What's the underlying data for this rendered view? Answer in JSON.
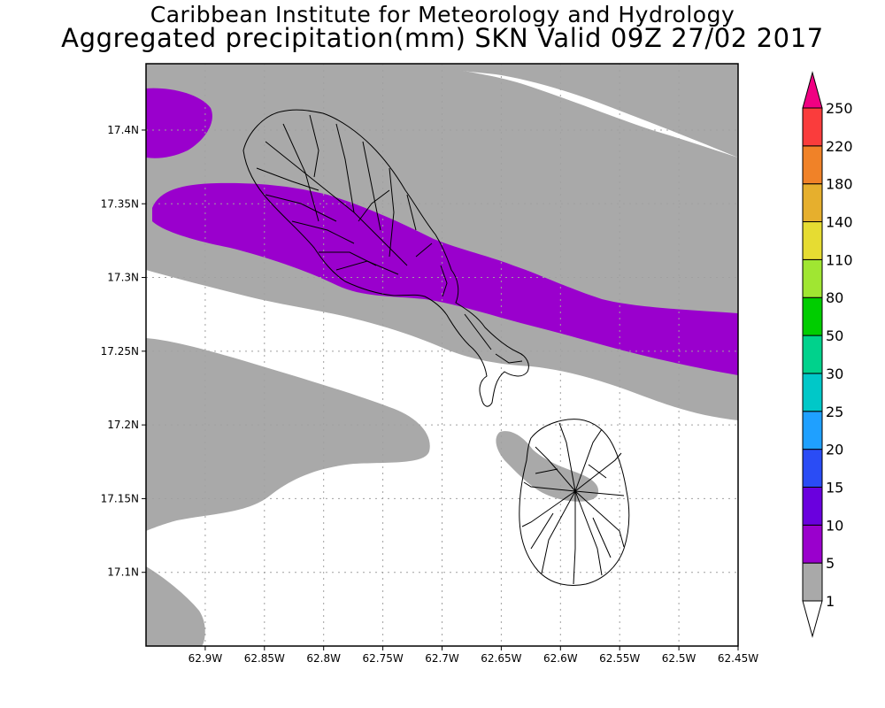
{
  "title_line1": "Caribbean Institute for Meteorology and Hydrology",
  "title_line2": "Aggregated precipitation(mm) SKN Valid 09Z 27/02 2017",
  "map": {
    "lon_range": [
      -62.95,
      -62.45
    ],
    "lat_range": [
      17.05,
      17.445
    ],
    "lon_ticks": [
      {
        "value": -62.9,
        "label": "62.9W"
      },
      {
        "value": -62.85,
        "label": "62.85W"
      },
      {
        "value": -62.8,
        "label": "62.8W"
      },
      {
        "value": -62.75,
        "label": "62.75W"
      },
      {
        "value": -62.7,
        "label": "62.7W"
      },
      {
        "value": -62.65,
        "label": "62.65W"
      },
      {
        "value": -62.6,
        "label": "62.6W"
      },
      {
        "value": -62.55,
        "label": "62.55W"
      },
      {
        "value": -62.5,
        "label": "62.5W"
      },
      {
        "value": -62.45,
        "label": "62.45W"
      }
    ],
    "lat_ticks": [
      {
        "value": 17.4,
        "label": "17.4N"
      },
      {
        "value": 17.35,
        "label": "17.35N"
      },
      {
        "value": 17.3,
        "label": "17.3N"
      },
      {
        "value": 17.25,
        "label": "17.25N"
      },
      {
        "value": 17.2,
        "label": "17.2N"
      },
      {
        "value": 17.15,
        "label": "17.15N"
      },
      {
        "value": 17.1,
        "label": "17.1N"
      }
    ],
    "grid": true,
    "features": [
      "St. Kitts",
      "Nevis"
    ]
  },
  "colorbar": {
    "levels": [
      "1",
      "5",
      "10",
      "15",
      "20",
      "25",
      "30",
      "50",
      "80",
      "110",
      "140",
      "180",
      "220",
      "250"
    ],
    "colors": [
      "#a9a9a9",
      "#9a00cd",
      "#6a00de",
      "#2a4cf5",
      "#1fa0ff",
      "#00c8c8",
      "#00d28c",
      "#00cd00",
      "#a0e632",
      "#e6dc32",
      "#e6af2d",
      "#f08228",
      "#fa3c3c",
      "#f00082"
    ],
    "under_color": "#ffffff",
    "over_color": "#f00082"
  }
}
